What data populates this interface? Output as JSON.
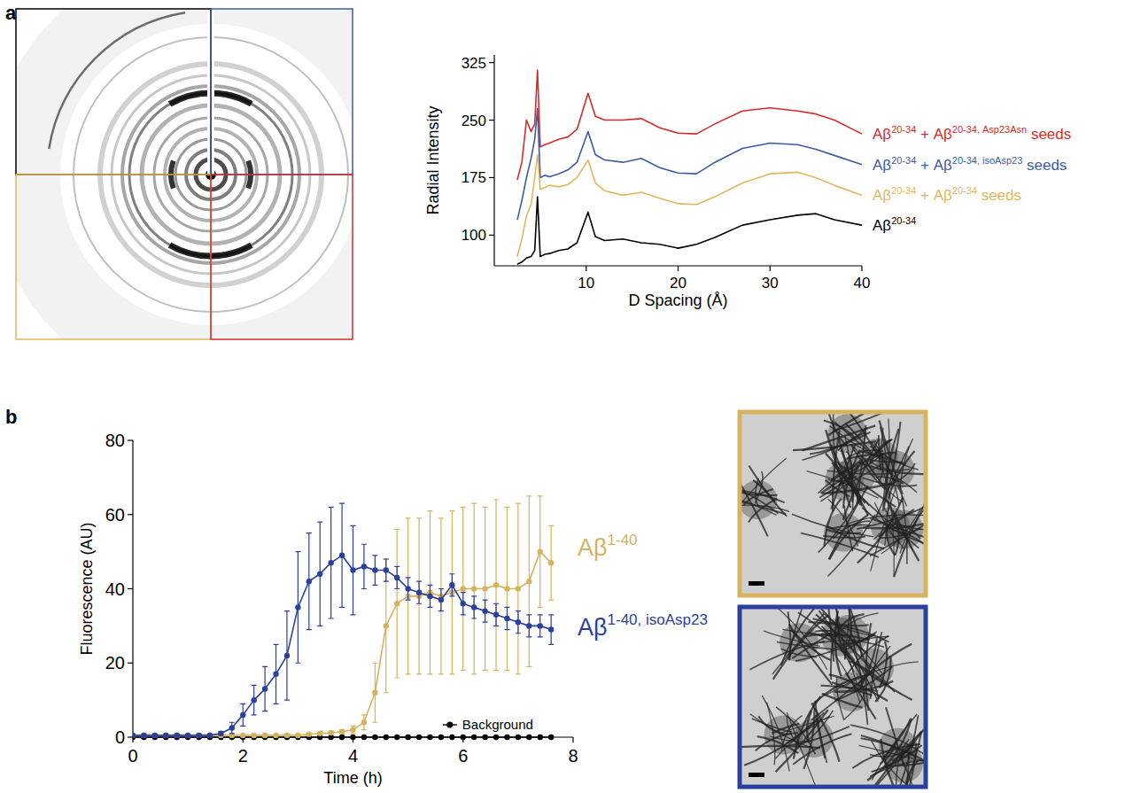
{
  "panel_labels": [
    "a",
    "b"
  ],
  "chart_data": [
    {
      "type": "line",
      "x_label": "D Spacing (Å)",
      "y_label": "Radial Intensity",
      "x": [
        2.5,
        3,
        3.5,
        4,
        4.4,
        4.7,
        5,
        5.5,
        6,
        7,
        8,
        9,
        10.2,
        11,
        12,
        14,
        16,
        18,
        20,
        22,
        24,
        27,
        30,
        33,
        35,
        37,
        40
      ],
      "xlim": [
        0,
        40
      ],
      "xticks": [
        10,
        20,
        30,
        40
      ],
      "ylim": [
        60,
        335
      ],
      "yticks": [
        100,
        175,
        250,
        325
      ],
      "series": [
        {
          "name": "Aβ20-34 + Aβ20-34, Asp23Asn seeds",
          "color": "#d62b2b",
          "values": [
            172,
            195,
            250,
            235,
            245,
            315,
            215,
            218,
            220,
            225,
            228,
            238,
            285,
            255,
            250,
            250,
            252,
            240,
            233,
            232,
            245,
            262,
            266,
            262,
            258,
            250,
            232
          ]
        },
        {
          "name": "Aβ20-34 + Aβ20-34, isoAsp23 seeds",
          "color": "#3b5ba9",
          "values": [
            120,
            145,
            175,
            200,
            225,
            265,
            175,
            178,
            176,
            180,
            185,
            195,
            235,
            205,
            198,
            195,
            200,
            188,
            181,
            180,
            195,
            213,
            220,
            218,
            212,
            204,
            192
          ]
        },
        {
          "name": "Aβ20-34 + Aβ20-34 seeds",
          "color": "#e3b65b",
          "values": [
            72,
            95,
            125,
            140,
            175,
            205,
            160,
            162,
            165,
            163,
            166,
            175,
            198,
            168,
            158,
            152,
            156,
            148,
            141,
            140,
            150,
            168,
            180,
            182,
            175,
            165,
            152
          ]
        },
        {
          "name": "Aβ20-34",
          "color": "#000000",
          "values": [
            62,
            65,
            70,
            72,
            80,
            150,
            72,
            75,
            76,
            80,
            82,
            90,
            130,
            98,
            93,
            95,
            90,
            88,
            83,
            88,
            97,
            113,
            120,
            126,
            128,
            120,
            113
          ]
        }
      ]
    },
    {
      "type": "line",
      "x_label": "Time (h)",
      "y_label": "Fluorescence (AU)",
      "x": [
        0,
        0.2,
        0.4,
        0.6,
        0.8,
        1,
        1.2,
        1.4,
        1.6,
        1.8,
        2,
        2.2,
        2.4,
        2.6,
        2.8,
        3,
        3.2,
        3.4,
        3.6,
        3.8,
        4,
        4.2,
        4.4,
        4.6,
        4.8,
        5,
        5.2,
        5.4,
        5.6,
        5.8,
        6,
        6.2,
        6.4,
        6.6,
        6.8,
        7,
        7.2,
        7.4,
        7.6
      ],
      "xlim": [
        0,
        8
      ],
      "xticks": [
        0,
        2,
        4,
        6,
        8
      ],
      "ylim": [
        0,
        80
      ],
      "yticks": [
        0,
        20,
        40,
        60,
        80
      ],
      "series": [
        {
          "name": "Aβ1-40, isoAsp23",
          "color": "#2b3f9e",
          "marker": "circle",
          "values": [
            0.5,
            0.5,
            0.5,
            0.5,
            0.5,
            0.5,
            0.5,
            0.5,
            1,
            2.5,
            6,
            10,
            13,
            17,
            22,
            35,
            42,
            44,
            47,
            49,
            45,
            46,
            45,
            45,
            43,
            40,
            39,
            38,
            37,
            41,
            36,
            35,
            34,
            33,
            32,
            31,
            30,
            30,
            29
          ],
          "errors": [
            0.2,
            0.2,
            0.2,
            0.2,
            0.2,
            0.2,
            0.2,
            0.2,
            0.5,
            1.5,
            3,
            4,
            6,
            8,
            12,
            15,
            13,
            14,
            15,
            14,
            12,
            6,
            4,
            3,
            3,
            3,
            3,
            3,
            3,
            3,
            3,
            3,
            3,
            3,
            3,
            3,
            3,
            3,
            4
          ]
        },
        {
          "name": "Aβ1-40",
          "color": "#d6b25e",
          "marker": "circle",
          "values": [
            0.5,
            0.5,
            0.5,
            0.5,
            0.5,
            0.5,
            0.5,
            0.5,
            0.5,
            0.5,
            0.5,
            0.5,
            0.5,
            0.5,
            0.5,
            0.5,
            0.8,
            1,
            1.2,
            1.5,
            2,
            4,
            12,
            30,
            36,
            38,
            38,
            39,
            38,
            39,
            40,
            40,
            40,
            41,
            40,
            40,
            42,
            50,
            47
          ],
          "errors": [
            0.2,
            0.2,
            0.2,
            0.2,
            0.2,
            0.2,
            0.2,
            0.2,
            0.2,
            0.2,
            0.2,
            0.2,
            0.2,
            0.2,
            0.2,
            0.2,
            0.3,
            0.3,
            0.4,
            0.5,
            1,
            2,
            8,
            18,
            20,
            21,
            21,
            22,
            21,
            22,
            22,
            23,
            22,
            23,
            22,
            23,
            23,
            15,
            10
          ]
        },
        {
          "name": "Background",
          "color": "#000000",
          "marker": "circle",
          "values": [
            0,
            0,
            0,
            0,
            0,
            0,
            0,
            0,
            0,
            0,
            0,
            0,
            0,
            0,
            0,
            0,
            0,
            0,
            0,
            0,
            0,
            0,
            0,
            0,
            0,
            0,
            0,
            0,
            0,
            0,
            0,
            0,
            0,
            0,
            0,
            0,
            0,
            0,
            0
          ]
        }
      ]
    }
  ]
}
